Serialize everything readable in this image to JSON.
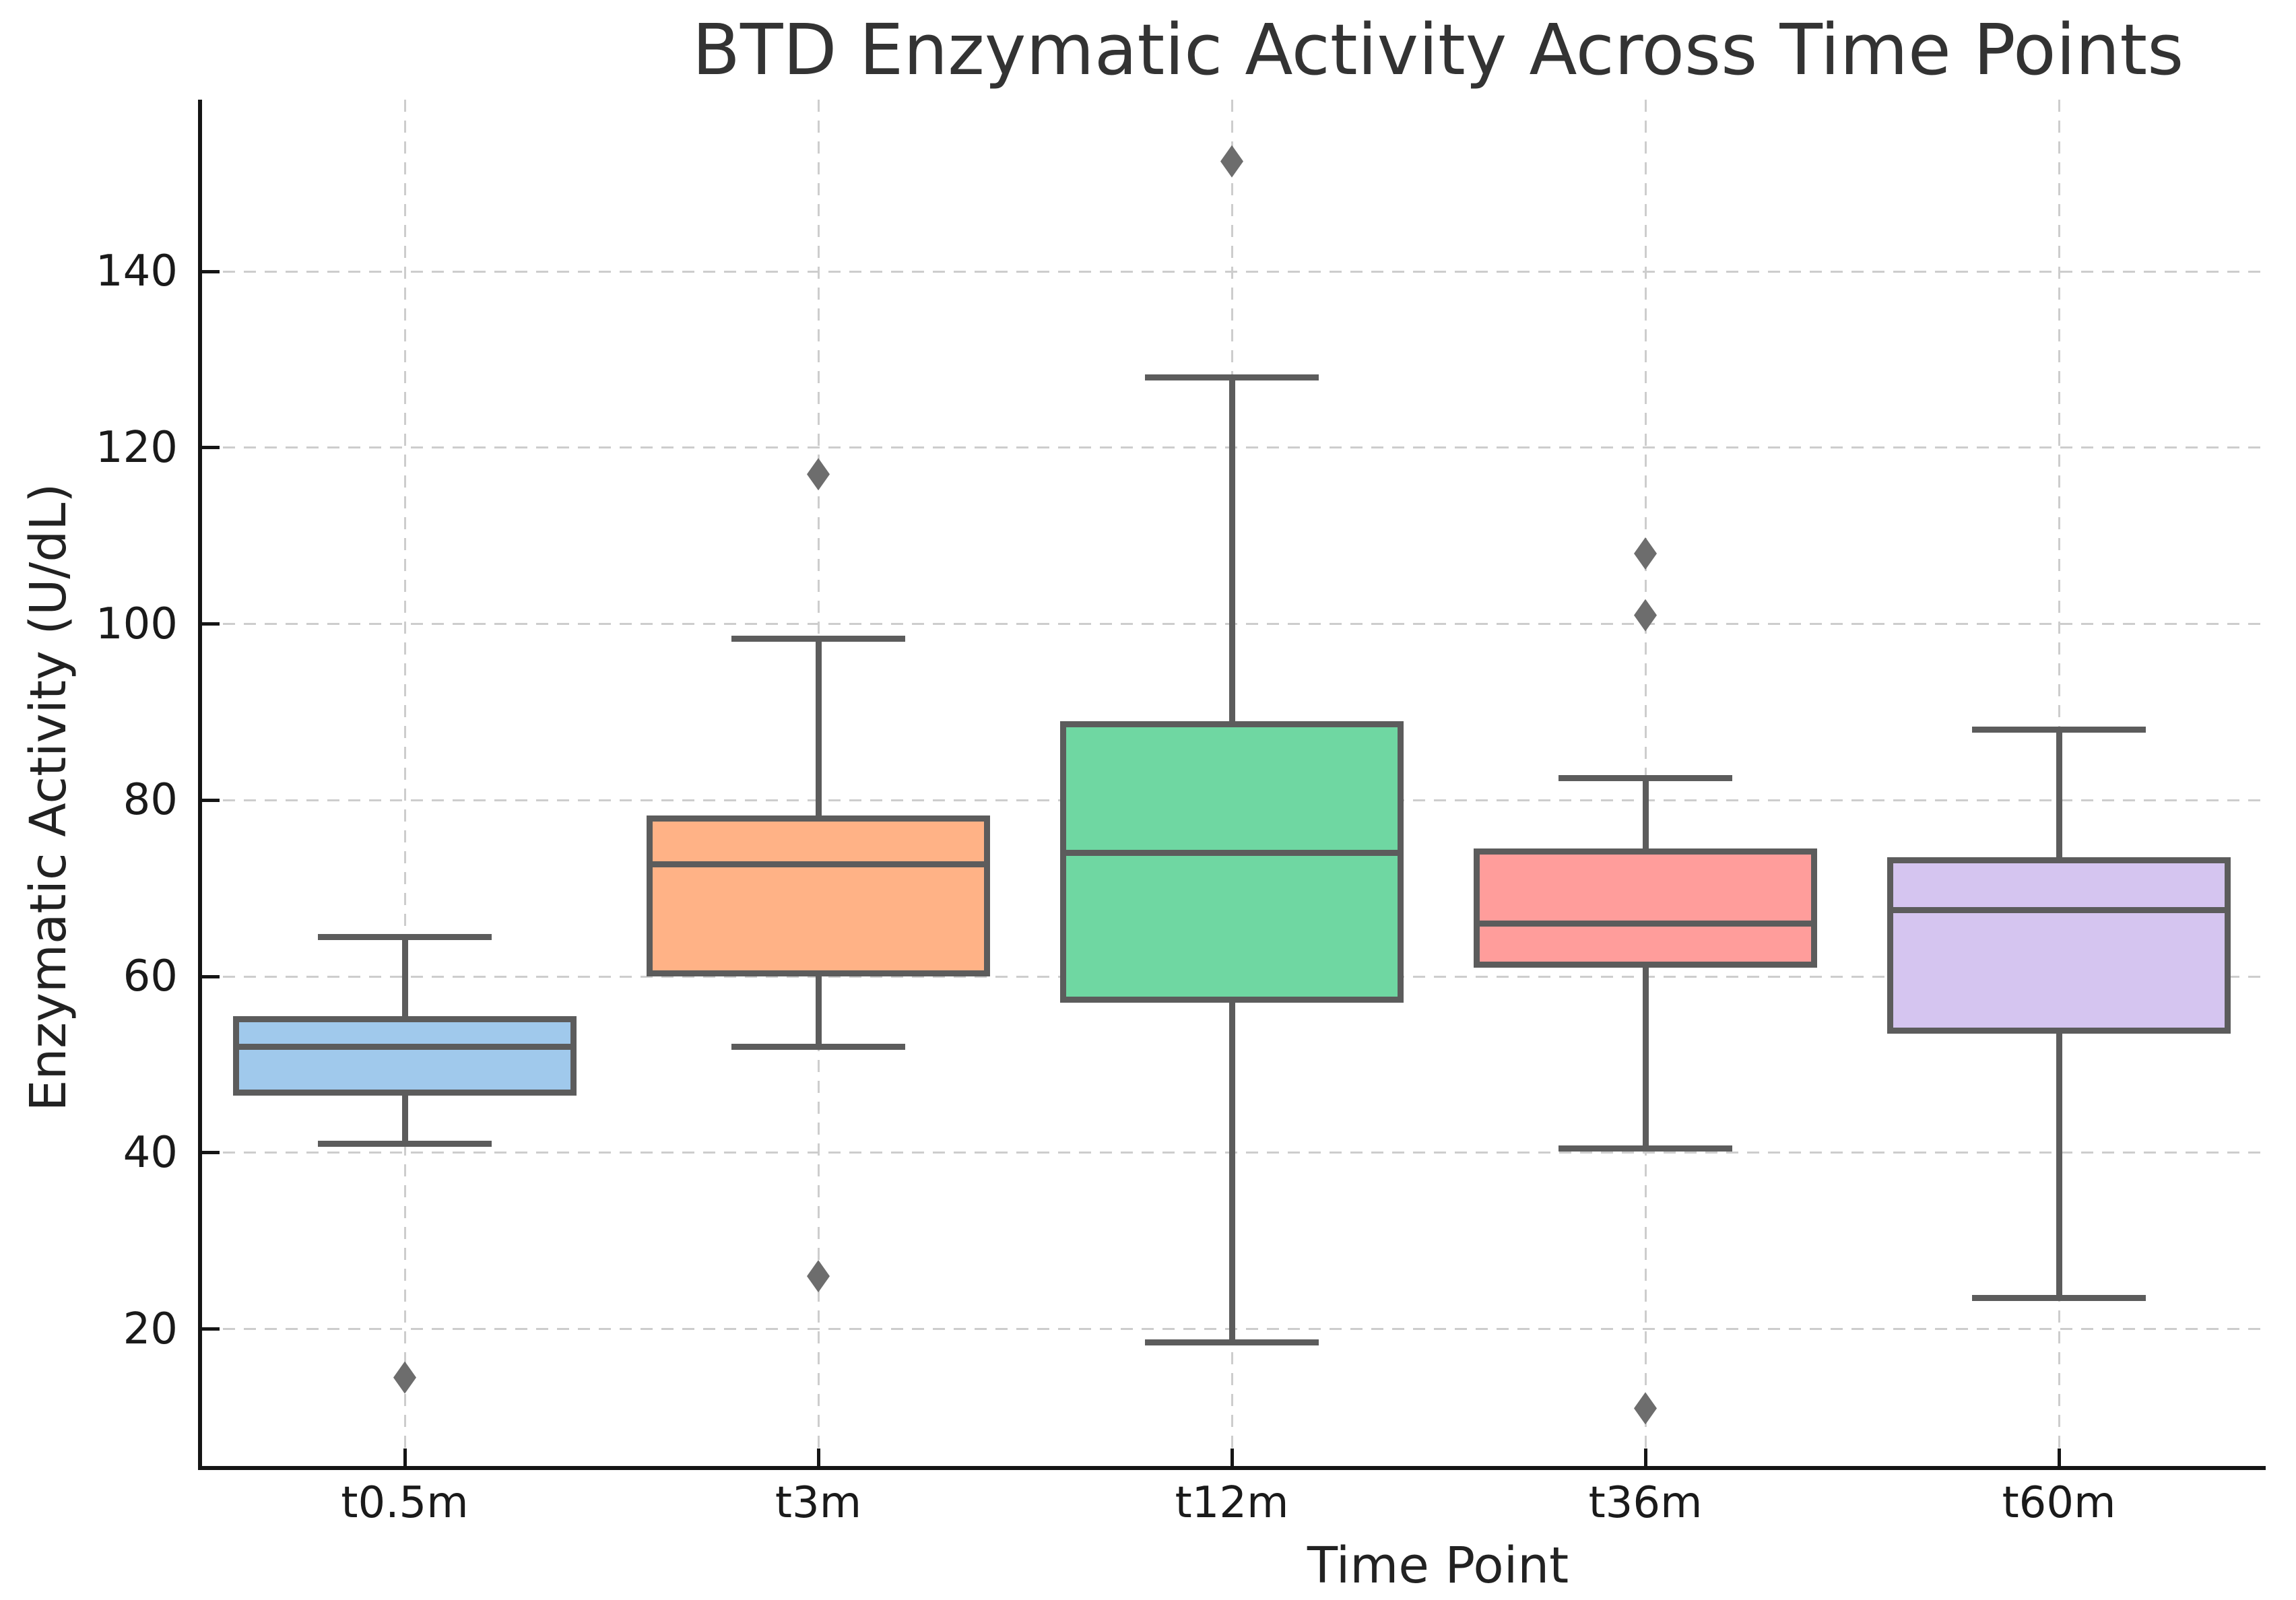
{
  "title": "BTD Enzymatic Activity Across Time Points",
  "xlabel": "Time Point",
  "ylabel": "Enzymatic Activity (U/dL)",
  "chart_data": {
    "type": "boxplot",
    "title": "BTD Enzymatic Activity Across Time Points",
    "xlabel": "Time Point",
    "ylabel": "Enzymatic Activity (U/dL)",
    "categories": [
      "t0.5m",
      "t3m",
      "t12m",
      "t36m",
      "t60m"
    ],
    "yticks": [
      20,
      40,
      60,
      80,
      100,
      120,
      140
    ],
    "ylim": [
      4,
      159.5
    ],
    "grid": "dashed-both-axes",
    "legend": "none",
    "marker": "thin-diamond",
    "series": [
      {
        "label": "t0.5m",
        "color": "#a0c9ec",
        "whisker_low": 41,
        "q1": 46.5,
        "median": 52,
        "q3": 55.5,
        "whisker_high": 64.5,
        "outliers": [
          14.5
        ]
      },
      {
        "label": "t3m",
        "color": "#ffb286",
        "whisker_low": 52,
        "q1": 60,
        "median": 72.7,
        "q3": 78.3,
        "whisker_high": 98.3,
        "outliers": [
          117,
          26
        ]
      },
      {
        "label": "t12m",
        "color": "#6fd7a2",
        "whisker_low": 18.5,
        "q1": 57,
        "median": 74,
        "q3": 89,
        "whisker_high": 128,
        "outliers": [
          152.5
        ]
      },
      {
        "label": "t36m",
        "color": "#ff9d9b",
        "whisker_low": 40.5,
        "q1": 61,
        "median": 66,
        "q3": 74.5,
        "whisker_high": 82.5,
        "outliers": [
          108,
          101,
          11
        ]
      },
      {
        "label": "t60m",
        "color": "#d5c5f0",
        "whisker_low": 23.5,
        "q1": 53.5,
        "median": 67.5,
        "q3": 73.5,
        "whisker_high": 88,
        "outliers": []
      }
    ],
    "colors": {
      "box_edge": "#5c5c5c",
      "median_line": "#5c5c5c",
      "whisker": "#5c5c5c",
      "outlier": "#6d6d6d",
      "gridline": "#cdcdcd",
      "spine": "#151515",
      "tick_text": "#1a1a1a",
      "title_text": "#333333",
      "background": "#ffffff"
    }
  }
}
